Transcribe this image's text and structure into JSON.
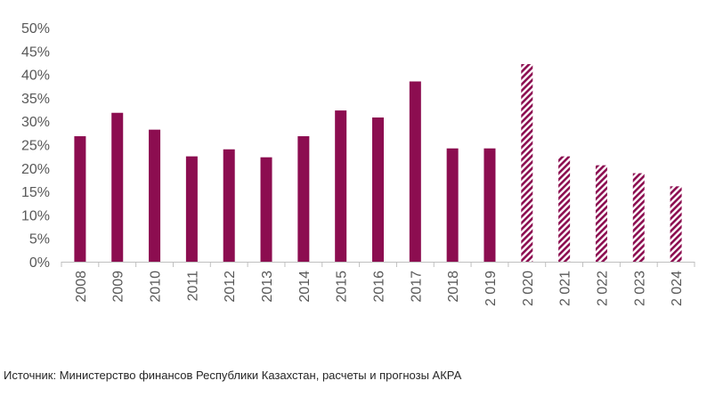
{
  "chart_data": {
    "type": "bar",
    "categories": [
      "2008",
      "2009",
      "2010",
      "2011",
      "2012",
      "2013",
      "2014",
      "2015",
      "2016",
      "2017",
      "2018",
      "2 019",
      "2 020",
      "2 021",
      "2 022",
      "2 023",
      "2 024"
    ],
    "values": [
      26.8,
      31.8,
      28.2,
      22.5,
      24.0,
      22.3,
      26.8,
      32.3,
      30.8,
      38.5,
      24.2,
      24.2,
      42.2,
      22.5,
      20.6,
      18.9,
      16.1
    ],
    "forecast_from_index": 12,
    "ylim": [
      0,
      50
    ],
    "ytick_step": 5,
    "ytick_labels": [
      "0%",
      "5%",
      "10%",
      "15%",
      "20%",
      "25%",
      "30%",
      "35%",
      "40%",
      "45%",
      "50%"
    ],
    "grid": false,
    "bar_color": "#8c0d50",
    "axis_color": "#bfbfbf"
  },
  "source_note": "Источник: Министерство финансов Республики Казахстан, расчеты и прогнозы АКРА"
}
